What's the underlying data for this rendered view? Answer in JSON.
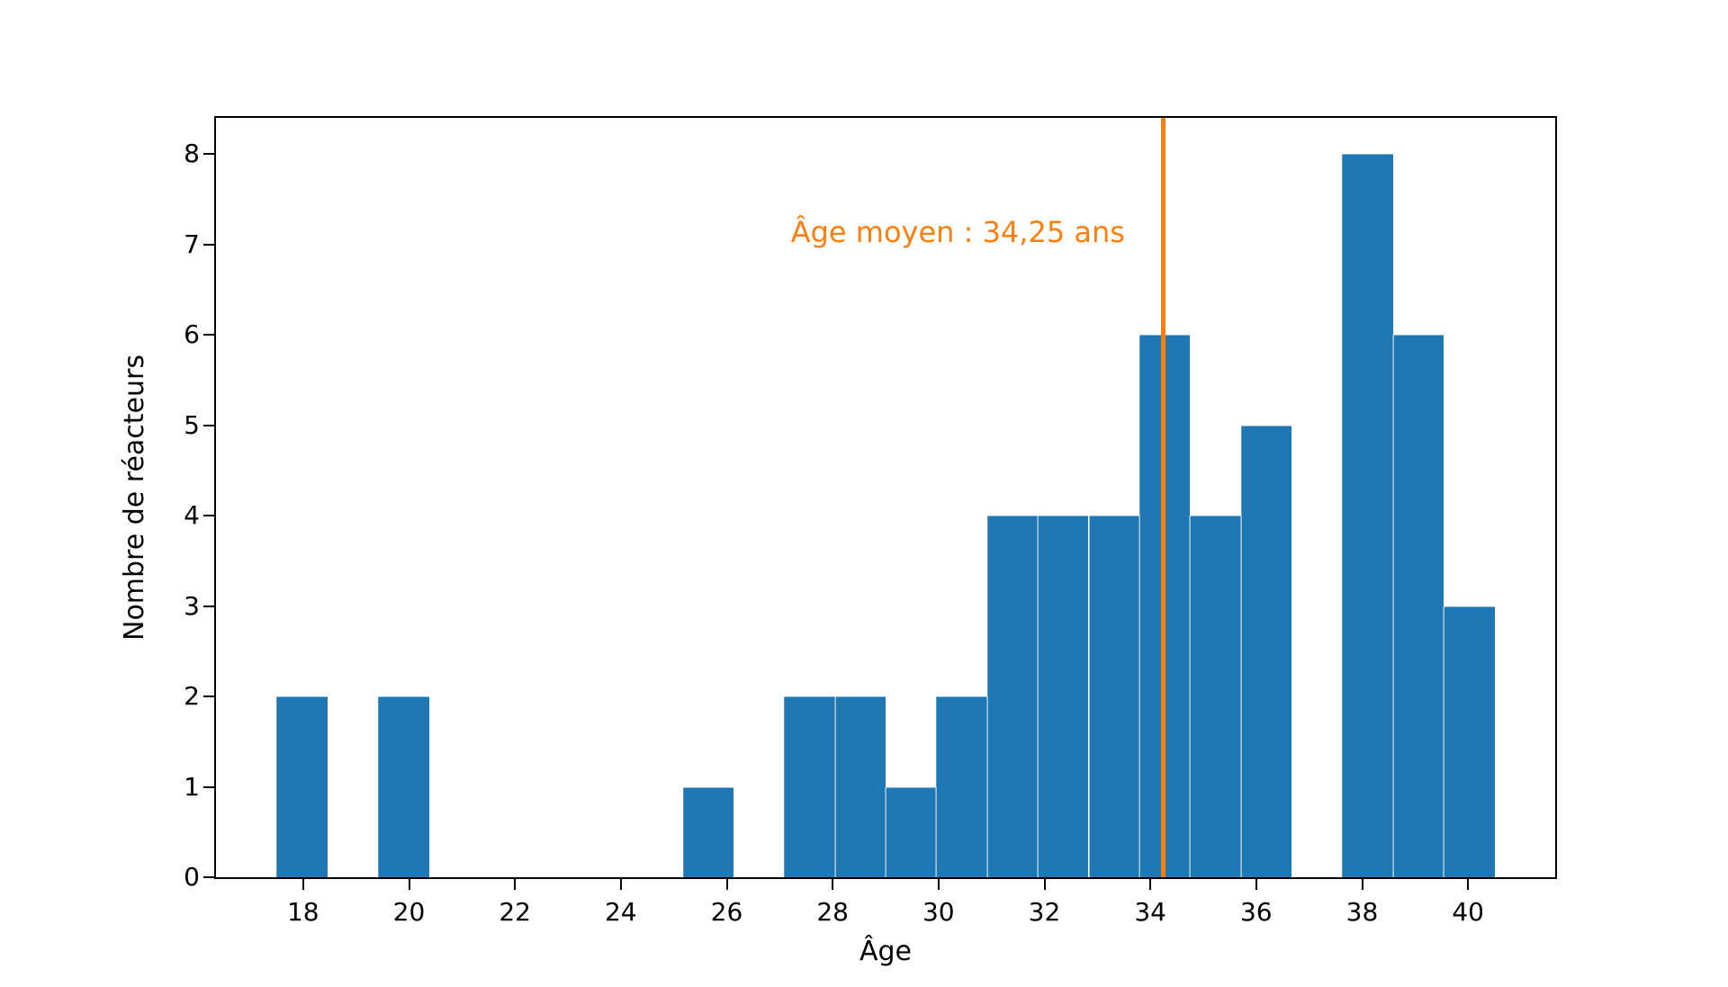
{
  "chart_data": {
    "type": "bar",
    "subtype": "histogram",
    "title": "",
    "xlabel": "Âge",
    "ylabel": "Nombre de réacteurs",
    "bar_color": "#1f77b4",
    "axis_color": "#000000",
    "background_color": "#ffffff",
    "grid": false,
    "histogram": {
      "bin_start": 17.5,
      "bin_end": 40.5,
      "bin_count": 24,
      "bin_width": 0.9583,
      "counts": [
        2,
        0,
        2,
        0,
        0,
        0,
        0,
        0,
        1,
        0,
        2,
        2,
        1,
        2,
        4,
        4,
        4,
        6,
        4,
        5,
        0,
        8,
        6,
        3
      ]
    },
    "x_ticks": [
      18,
      20,
      22,
      24,
      26,
      28,
      30,
      32,
      34,
      36,
      38,
      40
    ],
    "y_ticks": [
      0,
      1,
      2,
      3,
      4,
      5,
      6,
      7,
      8
    ],
    "xlim": [
      16.354,
      41.646
    ],
    "ylim": [
      0,
      8.4
    ],
    "mean_line": {
      "value": 34.25,
      "color": "#ff7f0e",
      "label": "Âge moyen : 34,25 ans"
    }
  }
}
